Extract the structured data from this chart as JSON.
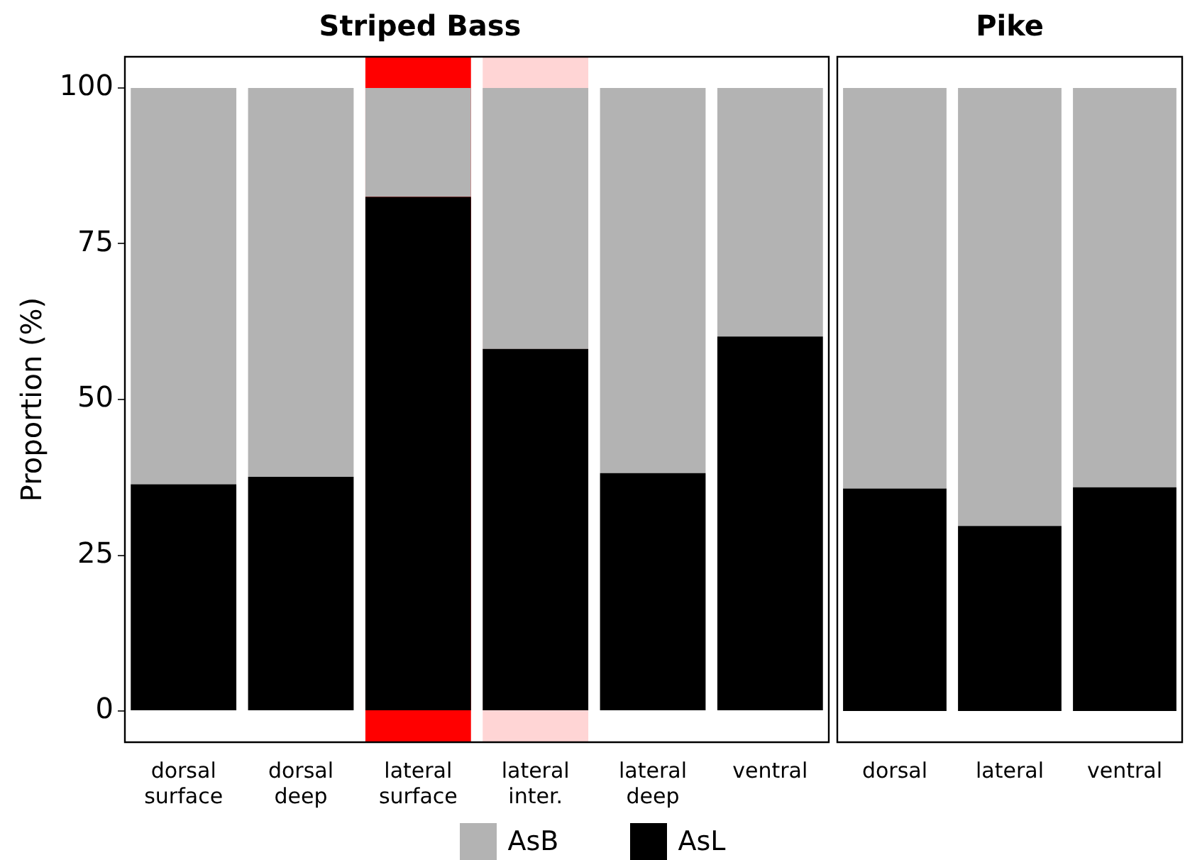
{
  "chart_data": [
    {
      "type": "bar",
      "title": "Striped Bass",
      "ylabel": "Proportion (%)",
      "categories": [
        "dorsal surface",
        "dorsal deep",
        "lateral surface",
        "lateral inter.",
        "lateral deep",
        "ventral"
      ],
      "stacked": true,
      "legend": "bottom",
      "ylim": [
        -5,
        105
      ],
      "yticks": [
        0,
        25,
        50,
        75,
        100
      ],
      "series": [
        {
          "name": "AsL",
          "color": "#000000",
          "values": [
            36.4,
            37.6,
            82.5,
            58.1,
            38.2,
            60.1
          ]
        },
        {
          "name": "AsB",
          "color": "#b3b3b3",
          "values": [
            63.6,
            62.4,
            17.5,
            41.9,
            61.8,
            39.9
          ]
        }
      ],
      "bands": [
        {
          "axis": "x",
          "from": "lateral surface",
          "to": "lateral surface",
          "color": "#ff0000"
        },
        {
          "axis": "x",
          "from": "lateral inter.",
          "to": "lateral inter.",
          "color": "#ffd5d5"
        }
      ]
    },
    {
      "type": "bar",
      "title": "Pike",
      "categories": [
        "dorsal",
        "lateral",
        "ventral"
      ],
      "stacked": true,
      "ylim": [
        -5,
        105
      ],
      "yticks": [
        0,
        25,
        50,
        75,
        100
      ],
      "tick_labels": "x",
      "series": [
        {
          "color": "#000000",
          "values": [
            35.7,
            29.7,
            35.9
          ]
        },
        {
          "color": "#b3b3b3",
          "values": [
            64.3,
            70.3,
            64.1
          ]
        }
      ]
    }
  ]
}
